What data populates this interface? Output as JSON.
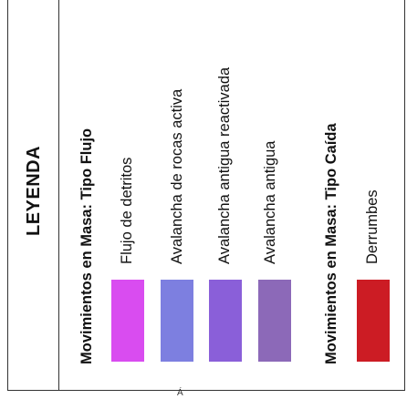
{
  "legend": {
    "title": "LEYENDA",
    "sections": [
      {
        "heading": "Movimientos en Masa:  Tipo Flujo",
        "items": [
          {
            "label": "Flujo de detritos",
            "color": "#d94cf0"
          },
          {
            "label": "Avalancha de rocas activa",
            "color": "#7d7fe0"
          },
          {
            "label": "Avalancha antigua reactivada",
            "color": "#8a5fd9"
          },
          {
            "label": "Avalancha antigua",
            "color": "#8c69b8"
          }
        ]
      },
      {
        "heading": "Movimientos en Masa:  Tipo Caída",
        "items": [
          {
            "label": "Derrumbes",
            "color": "#cc1c24"
          }
        ]
      }
    ]
  },
  "footer_glyph": "Á"
}
